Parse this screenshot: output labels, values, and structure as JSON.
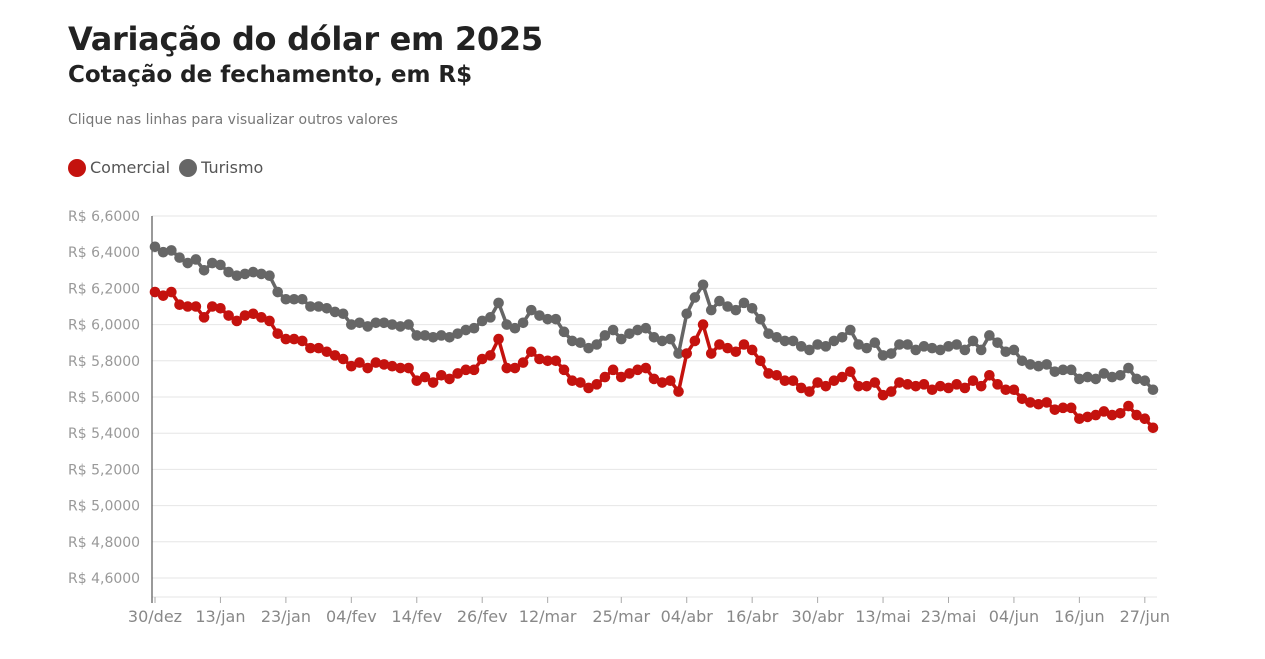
{
  "header": {
    "title": "Variação do dólar em 2025",
    "subtitle": "Cotação de fechamento, em R$",
    "note": "Clique nas linhas para visualizar outros valores"
  },
  "legend": [
    {
      "label": "Comercial",
      "color": "#c4120e"
    },
    {
      "label": "Turismo",
      "color": "#666666"
    }
  ],
  "chart_data": {
    "type": "line",
    "ylim": [
      4.55,
      6.66
    ],
    "yticks": [
      {
        "value": 6.6,
        "label": "R$ 6,6000"
      },
      {
        "value": 6.4,
        "label": "R$ 6,4000"
      },
      {
        "value": 6.2,
        "label": "R$ 6,2000"
      },
      {
        "value": 6.0,
        "label": "R$ 6,0000"
      },
      {
        "value": 5.8,
        "label": "R$ 5,8000"
      },
      {
        "value": 5.6,
        "label": "R$ 5,6000"
      },
      {
        "value": 5.4,
        "label": "R$ 5,4000"
      },
      {
        "value": 5.2,
        "label": "R$ 5,2000"
      },
      {
        "value": 5.0,
        "label": "R$ 5,0000"
      },
      {
        "value": 4.8,
        "label": "R$ 4,8000"
      },
      {
        "value": 4.6,
        "label": "R$ 4,6000"
      }
    ],
    "xticks": [
      {
        "index": 0,
        "label": "30/dez"
      },
      {
        "index": 8,
        "label": "13/jan"
      },
      {
        "index": 16,
        "label": "23/jan"
      },
      {
        "index": 24,
        "label": "04/fev"
      },
      {
        "index": 32,
        "label": "14/fev"
      },
      {
        "index": 40,
        "label": "26/fev"
      },
      {
        "index": 48,
        "label": "12/mar"
      },
      {
        "index": 57,
        "label": "25/mar"
      },
      {
        "index": 65,
        "label": "04/abr"
      },
      {
        "index": 73,
        "label": "16/abr"
      },
      {
        "index": 81,
        "label": "30/abr"
      },
      {
        "index": 89,
        "label": "13/mai"
      },
      {
        "index": 97,
        "label": "23/mai"
      },
      {
        "index": 105,
        "label": "04/jun"
      },
      {
        "index": 113,
        "label": "16/jun"
      },
      {
        "index": 121,
        "label": "27/jun"
      }
    ],
    "series": [
      {
        "name": "Comercial",
        "color": "#c4120e",
        "values": [
          6.18,
          6.16,
          6.18,
          6.11,
          6.1,
          6.1,
          6.04,
          6.1,
          6.09,
          6.05,
          6.02,
          6.05,
          6.06,
          6.04,
          6.02,
          5.95,
          5.92,
          5.92,
          5.91,
          5.87,
          5.87,
          5.85,
          5.83,
          5.81,
          5.77,
          5.79,
          5.76,
          5.79,
          5.78,
          5.77,
          5.76,
          5.76,
          5.69,
          5.71,
          5.68,
          5.72,
          5.7,
          5.73,
          5.75,
          5.75,
          5.81,
          5.83,
          5.92,
          5.76,
          5.76,
          5.79,
          5.85,
          5.81,
          5.8,
          5.8,
          5.75,
          5.69,
          5.68,
          5.65,
          5.67,
          5.71,
          5.75,
          5.71,
          5.73,
          5.75,
          5.76,
          5.7,
          5.68,
          5.69,
          5.63,
          5.84,
          5.91,
          6.0,
          5.84,
          5.89,
          5.87,
          5.85,
          5.89,
          5.86,
          5.8,
          5.73,
          5.72,
          5.69,
          5.69,
          5.65,
          5.63,
          5.68,
          5.66,
          5.69,
          5.71,
          5.74,
          5.66,
          5.66,
          5.68,
          5.61,
          5.63,
          5.68,
          5.67,
          5.66,
          5.67,
          5.64,
          5.66,
          5.65,
          5.67,
          5.65,
          5.69,
          5.66,
          5.72,
          5.67,
          5.64,
          5.64,
          5.59,
          5.57,
          5.56,
          5.57,
          5.53,
          5.54,
          5.54,
          5.48,
          5.49,
          5.5,
          5.52,
          5.5,
          5.51,
          5.55,
          5.5,
          5.48,
          5.43
        ]
      },
      {
        "name": "Turismo",
        "color": "#666666",
        "values": [
          6.43,
          6.4,
          6.41,
          6.37,
          6.34,
          6.36,
          6.3,
          6.34,
          6.33,
          6.29,
          6.27,
          6.28,
          6.29,
          6.28,
          6.27,
          6.18,
          6.14,
          6.14,
          6.14,
          6.1,
          6.1,
          6.09,
          6.07,
          6.06,
          6.0,
          6.01,
          5.99,
          6.01,
          6.01,
          6.0,
          5.99,
          6.0,
          5.94,
          5.94,
          5.93,
          5.94,
          5.93,
          5.95,
          5.97,
          5.98,
          6.02,
          6.04,
          6.12,
          6.0,
          5.98,
          6.01,
          6.08,
          6.05,
          6.03,
          6.03,
          5.96,
          5.91,
          5.9,
          5.87,
          5.89,
          5.94,
          5.97,
          5.92,
          5.95,
          5.97,
          5.98,
          5.93,
          5.91,
          5.92,
          5.84,
          6.06,
          6.15,
          6.22,
          6.08,
          6.13,
          6.1,
          6.08,
          6.12,
          6.09,
          6.03,
          5.95,
          5.93,
          5.91,
          5.91,
          5.88,
          5.86,
          5.89,
          5.88,
          5.91,
          5.93,
          5.97,
          5.89,
          5.87,
          5.9,
          5.83,
          5.84,
          5.89,
          5.89,
          5.86,
          5.88,
          5.87,
          5.86,
          5.88,
          5.89,
          5.86,
          5.91,
          5.86,
          5.94,
          5.9,
          5.85,
          5.86,
          5.8,
          5.78,
          5.77,
          5.78,
          5.74,
          5.75,
          5.75,
          5.7,
          5.71,
          5.7,
          5.73,
          5.71,
          5.72,
          5.76,
          5.7,
          5.69,
          5.64
        ]
      }
    ]
  }
}
